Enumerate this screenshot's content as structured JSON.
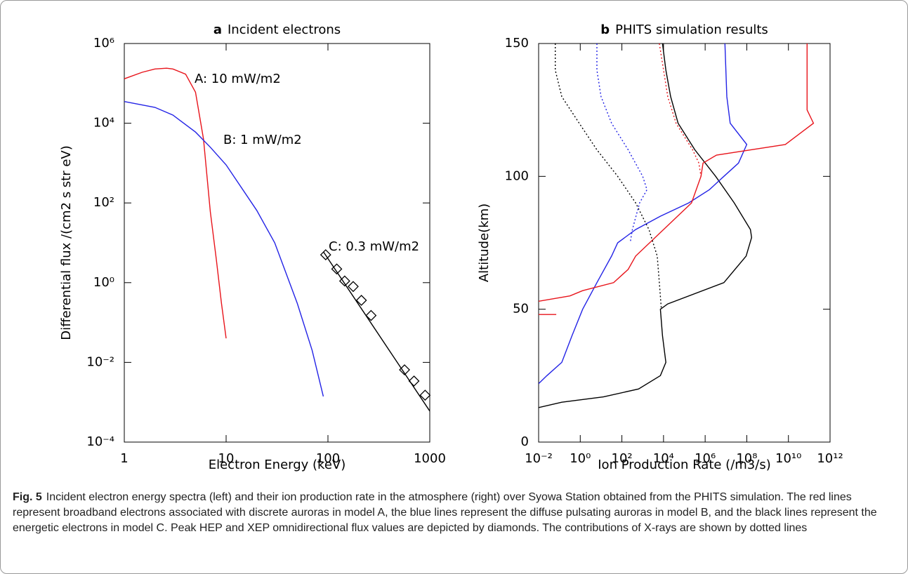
{
  "chart_data": [
    {
      "type": "line",
      "panel": "a",
      "title": "Incident electrons",
      "x_label": "Electron Energy (keV)",
      "y_label": "Differential flux /(cm2 s str eV)",
      "xscale": "log",
      "yscale": "log",
      "xlim": [
        1,
        1000
      ],
      "xticks": [
        1,
        10,
        100,
        1000
      ],
      "ylim": [
        0.0001,
        1000000
      ],
      "yticks": [
        {
          "value": 0.0001,
          "label": "10⁻⁴"
        },
        {
          "value": 0.01,
          "label": "10⁻²"
        },
        {
          "value": 1,
          "label": "10⁰"
        },
        {
          "value": 100,
          "label": "10²"
        },
        {
          "value": 10000,
          "label": "10⁴"
        },
        {
          "value": 1000000,
          "label": "10⁶"
        }
      ],
      "series": [
        {
          "label": "A: 10 mW/m2",
          "color": "#e8141b",
          "x": [
            1,
            1.5,
            2,
            2.6,
            3,
            4,
            5,
            6,
            7,
            8,
            9,
            10
          ],
          "values": [
            130000,
            190000,
            230000,
            240000,
            230000,
            170000,
            60000,
            4000,
            60,
            4,
            0.3,
            0.04
          ]
        },
        {
          "label": "B: 1 mW/m2",
          "color": "#2323e6",
          "x": [
            1,
            2,
            3,
            5,
            7,
            10,
            20,
            30,
            50,
            70,
            90
          ],
          "values": [
            35000,
            25000,
            16000,
            6000,
            2500,
            900,
            65,
            10,
            0.3,
            0.02,
            0.0014
          ]
        },
        {
          "label": "C: 0.3 mW/m2",
          "color": "#000000",
          "x": [
            90,
            1000
          ],
          "values": [
            6,
            0.0006
          ]
        },
        {
          "color": "#000000",
          "marker": "diamond",
          "x": [
            95,
            122,
            146,
            177,
            213,
            265,
            565,
            700,
            900
          ],
          "values": [
            5,
            2.2,
            1.1,
            0.8,
            0.36,
            0.15,
            0.0065,
            0.0034,
            0.0015
          ]
        }
      ]
    },
    {
      "type": "line",
      "panel": "b",
      "title": "PHITS simulation results",
      "x_label": "Ion Production Rate (/m3/s)",
      "y_label": "Altitude(km)",
      "xscale": "log",
      "yscale": "linear",
      "xlim": [
        0.01,
        1000000000000
      ],
      "xticks": [
        {
          "value": 0.01,
          "label": "10⁻²"
        },
        {
          "value": 1,
          "label": "10⁰"
        },
        {
          "value": 100,
          "label": "10²"
        },
        {
          "value": 10000,
          "label": "10⁴"
        },
        {
          "value": 1000000,
          "label": "10⁶"
        },
        {
          "value": 100000000,
          "label": "10⁸"
        },
        {
          "value": 10000000000,
          "label": "10¹⁰"
        },
        {
          "value": 1000000000000,
          "label": "10¹²"
        }
      ],
      "ylim": [
        0,
        150
      ],
      "yticks": [
        0,
        50,
        100,
        150
      ],
      "series": [
        {
          "color": "#000000",
          "x": [
            8900,
            13000,
            22000,
            50000,
            320000,
            3200000,
            25000000,
            150000000,
            170000000,
            93000000,
            7900000,
            16000,
            7100,
            8900,
            13000,
            7100,
            630,
            13,
            0.13,
            0.01
          ],
          "y": [
            150,
            140,
            130,
            120,
            110,
            100,
            90,
            80,
            77,
            70,
            60,
            52,
            50,
            40,
            30,
            25,
            20,
            17,
            15,
            13
          ]
        },
        {
          "color": "#2323e6",
          "x": [
            8900000,
            11000000,
            16000000,
            100000000,
            40000000,
            7900000,
            1600000,
            160000,
            7100,
            460,
            63,
            32,
            6.3,
            1.3,
            0.4,
            0.13,
            0.025,
            0.01
          ],
          "y": [
            150,
            130,
            120,
            112,
            105,
            100,
            95,
            90,
            85,
            80,
            75,
            70,
            60,
            50,
            40,
            30,
            25,
            22
          ]
        },
        {
          "color": "#e8141b",
          "x": [
            79000000000,
            79000000000,
            160000000000,
            7100000000,
            3500000,
            790000,
            630000,
            220000,
            10000,
            460,
            200,
            40,
            1.3,
            0.32,
            0.01,
            null,
            0.01,
            0.07
          ],
          "y": [
            150,
            125,
            120,
            112,
            108,
            105,
            100,
            90,
            80,
            70,
            65,
            60,
            57,
            55,
            53,
            null,
            48,
            48
          ]
        },
        {
          "color": "#000000",
          "dashed": true,
          "x": [
            0.063,
            0.063,
            0.13,
            0.89,
            6.3,
            63,
            460,
            2000,
            5000,
            6300,
            7900
          ],
          "y": [
            150,
            140,
            130,
            120,
            110,
            100,
            90,
            80,
            70,
            60,
            50
          ]
        },
        {
          "color": "#2323e6",
          "dashed": true,
          "x": [
            6.3,
            6.3,
            10,
            32,
            200,
            1000,
            1600,
            710,
            320,
            250
          ],
          "y": [
            150,
            140,
            130,
            120,
            110,
            100,
            95,
            90,
            80,
            75
          ]
        },
        {
          "color": "#e8141b",
          "dashed": true,
          "x": [
            6300,
            16000,
            40000,
            250000,
            500000,
            630000
          ],
          "y": [
            150,
            130,
            120,
            110,
            105,
            100
          ]
        }
      ]
    }
  ],
  "caption": {
    "label": "Fig. 5",
    "text": "Incident electron energy spectra (left) and their ion production rate in the atmosphere (right) over Syowa Station obtained from the PHITS simulation. The red lines represent broadband electrons associated with discrete auroras in model A, the blue lines represent the diffuse pulsating auroras in model B, and the black lines represent the energetic electrons in model C. Peak HEP and XEP omnidirectional flux values are depicted by diamonds. The contributions of X-rays are shown by dotted lines"
  }
}
